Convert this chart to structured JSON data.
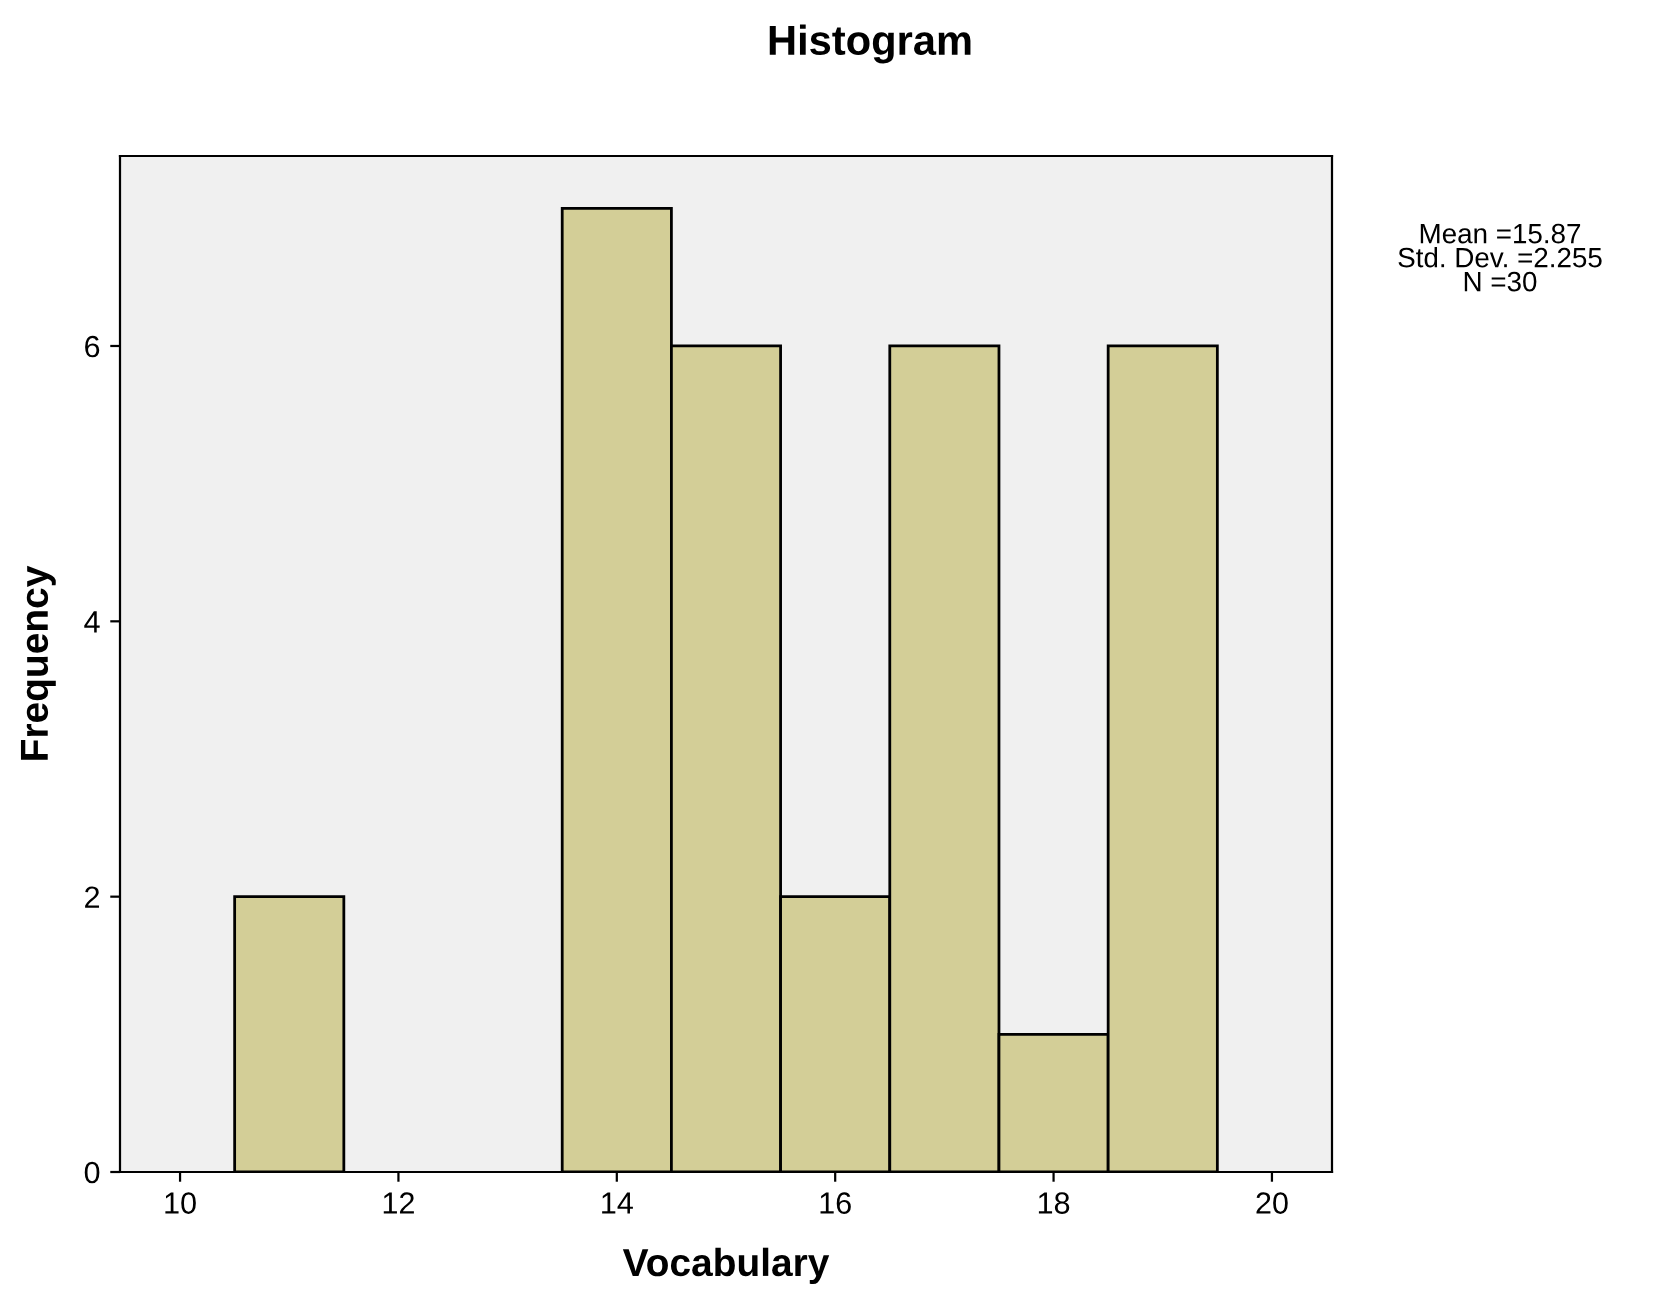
{
  "chart_data": {
    "type": "histogram",
    "title": "Histogram",
    "xlabel": "Vocabulary",
    "ylabel": "Frequency",
    "bins": [
      10.5,
      11.5,
      12.5,
      13.5,
      14.5,
      15.5,
      16.5,
      17.5,
      18.5,
      19.5
    ],
    "values": [
      2,
      0,
      0,
      7,
      6,
      2,
      6,
      1,
      6
    ],
    "color": "#d3ce97",
    "xlim": [
      9.45,
      20.55
    ],
    "ylim": [
      0,
      7.38
    ],
    "xticks": [
      10,
      12,
      14,
      16,
      18,
      20
    ],
    "yticks": [
      0,
      2,
      4,
      6
    ],
    "grid": false,
    "annotations": [
      "Mean =15.87",
      "Std. Dev. =2.255",
      "N =30"
    ]
  }
}
